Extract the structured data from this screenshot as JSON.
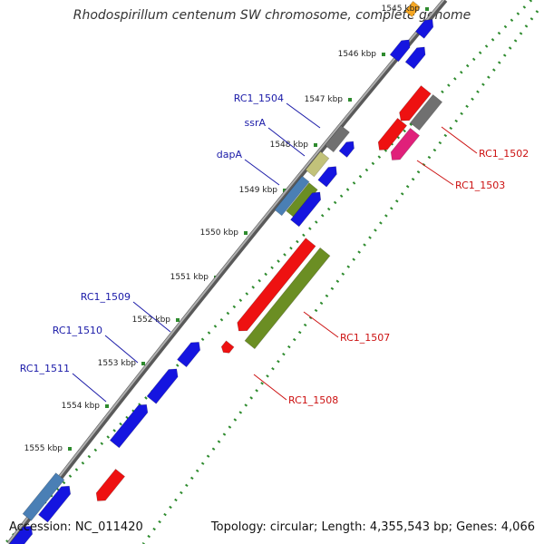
{
  "title": "Rhodospirillum centenum SW chromosome, complete genome",
  "accession": "Accession: NC_011420",
  "topology": "Topology: circular; Length: 4,355,543 bp; Genes: 4,066",
  "colors": {
    "forward_label": "#1a1aa8",
    "reverse_label": "#cc1111",
    "backbone": "#8a8a8a",
    "tick_dots": "#2e8b2e",
    "blue": "#1515e0",
    "red": "#ee1111",
    "olive": "#6b8e23",
    "gray": "#707070",
    "khaki": "#c2c27a",
    "steel": "#4a7fb5",
    "magenta": "#e0207a",
    "orange": "#f5a623"
  },
  "tick_labels": [
    {
      "kbp": 1545,
      "text": "1545 kbp"
    },
    {
      "kbp": 1546,
      "text": "1546 kbp"
    },
    {
      "kbp": 1547,
      "text": "1547 kbp"
    },
    {
      "kbp": 1548,
      "text": "1548 kbp"
    },
    {
      "kbp": 1549,
      "text": "1549 kbp"
    },
    {
      "kbp": 1550,
      "text": "1550 kbp"
    },
    {
      "kbp": 1551,
      "text": "1551 kbp"
    },
    {
      "kbp": 1552,
      "text": "1552 kbp"
    },
    {
      "kbp": 1553,
      "text": "1553 kbp"
    },
    {
      "kbp": 1554,
      "text": "1554 kbp"
    },
    {
      "kbp": 1555,
      "text": "1555 kbp"
    }
  ],
  "gene_labels_forward": [
    {
      "name": "RC1_1504"
    },
    {
      "name": "ssrA"
    },
    {
      "name": "dapA"
    },
    {
      "name": "RC1_1509"
    },
    {
      "name": "RC1_1510"
    },
    {
      "name": "RC1_1511"
    }
  ],
  "gene_labels_reverse": [
    {
      "name": "RC1_1502"
    },
    {
      "name": "RC1_1503"
    },
    {
      "name": "RC1_1507"
    },
    {
      "name": "RC1_1508"
    }
  ]
}
